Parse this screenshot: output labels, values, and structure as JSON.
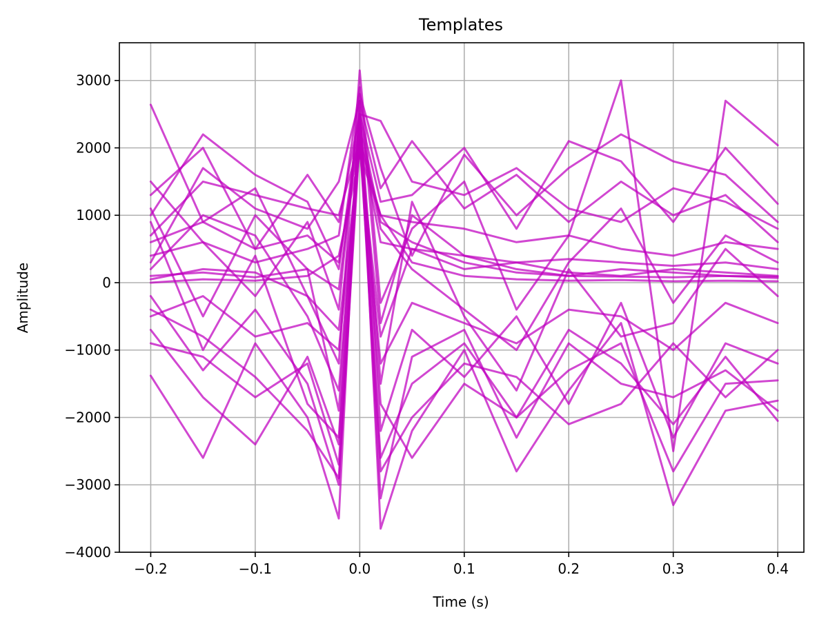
{
  "chart_data": {
    "type": "line",
    "title": "Templates",
    "xlabel": "Time (s)",
    "ylabel": "Amplitude",
    "xlim": [
      -0.23,
      0.425
    ],
    "ylim": [
      -4000,
      3560
    ],
    "x_ticks": [
      -0.2,
      -0.1,
      0.0,
      0.1,
      0.2,
      0.3,
      0.4
    ],
    "x_tick_labels": [
      "−0.2",
      "−0.1",
      "0.0",
      "0.1",
      "0.2",
      "0.3",
      "0.4"
    ],
    "y_ticks": [
      -4000,
      -3000,
      -2000,
      -1000,
      0,
      1000,
      2000,
      3000
    ],
    "y_tick_labels": [
      "−4000",
      "−3000",
      "−2000",
      "−1000",
      "0",
      "1000",
      "2000",
      "3000"
    ],
    "grid": true,
    "legend": "none",
    "line_color": "#bf00bf",
    "x": [
      -0.2,
      -0.15,
      -0.1,
      -0.05,
      -0.02,
      0.0,
      0.02,
      0.05,
      0.1,
      0.15,
      0.2,
      0.25,
      0.3,
      0.35,
      0.4
    ],
    "series": [
      {
        "values": [
          2640,
          900,
          1400,
          -200,
          -1200,
          3150,
          -300,
          800,
          1500,
          -400,
          700,
          3000,
          -2500,
          2700,
          2040
        ]
      },
      {
        "values": [
          -1380,
          -2600,
          -900,
          -2000,
          -3500,
          2700,
          -3650,
          -2200,
          -1000,
          -2800,
          -1600,
          -600,
          -3300,
          -1900,
          -1750
        ]
      },
      {
        "values": [
          400,
          600,
          300,
          500,
          700,
          2900,
          -600,
          1000,
          400,
          200,
          100,
          200,
          150,
          100,
          90
        ]
      },
      {
        "values": [
          100,
          150,
          80,
          200,
          -100,
          2400,
          900,
          600,
          300,
          150,
          100,
          90,
          80,
          100,
          70
        ]
      },
      {
        "values": [
          -400,
          -800,
          -1400,
          -2200,
          -2900,
          2100,
          -2600,
          -1500,
          -900,
          -2000,
          -700,
          -1200,
          -2100,
          -1100,
          -2050
        ]
      },
      {
        "values": [
          1300,
          2000,
          500,
          1600,
          900,
          2500,
          1200,
          1300,
          2000,
          800,
          2100,
          1800,
          900,
          2000,
          1170
        ]
      },
      {
        "values": [
          700,
          1500,
          1300,
          1100,
          1000,
          2100,
          1000,
          900,
          800,
          600,
          700,
          500,
          400,
          600,
          500
        ]
      },
      {
        "values": [
          -700,
          -1700,
          -2400,
          -1100,
          -2400,
          2200,
          -1800,
          -2600,
          -1500,
          -2000,
          -1300,
          -900,
          -2800,
          -1500,
          -1450
        ]
      },
      {
        "values": [
          200,
          1000,
          700,
          -500,
          -1600,
          2300,
          800,
          200,
          -400,
          -1000,
          300,
          1100,
          -300,
          700,
          300
        ]
      },
      {
        "values": [
          1000,
          2200,
          1600,
          1200,
          200,
          2500,
          2400,
          1500,
          1300,
          1700,
          1100,
          900,
          1400,
          1200,
          800
        ]
      },
      {
        "values": [
          -500,
          -200,
          -800,
          -600,
          -1000,
          2000,
          -1200,
          -300,
          -600,
          -900,
          -400,
          -500,
          -1000,
          -300,
          -600
        ]
      },
      {
        "values": [
          0,
          50,
          30,
          100,
          400,
          1900,
          1000,
          300,
          100,
          50,
          30,
          40,
          20,
          30,
          20
        ]
      },
      {
        "values": [
          900,
          -1000,
          400,
          -1800,
          -2300,
          2600,
          -2200,
          -700,
          -1400,
          -500,
          -1800,
          -300,
          -2300,
          -900,
          -1200
        ]
      },
      {
        "values": [
          300,
          1700,
          1100,
          800,
          1500,
          2700,
          1400,
          2100,
          1100,
          1600,
          900,
          1500,
          1000,
          1300,
          600
        ]
      },
      {
        "values": [
          -200,
          -1300,
          -400,
          -1500,
          -3000,
          2300,
          -3200,
          -1100,
          -700,
          -2300,
          -900,
          -1500,
          -1700,
          -1300,
          -1900
        ]
      },
      {
        "values": [
          1500,
          600,
          -200,
          900,
          -400,
          2800,
          1700,
          400,
          1900,
          1000,
          1700,
          2200,
          1800,
          1600,
          900
        ]
      },
      {
        "values": [
          50,
          200,
          150,
          -200,
          -700,
          2000,
          -800,
          500,
          200,
          300,
          150,
          100,
          200,
          150,
          100
        ]
      },
      {
        "values": [
          1100,
          -500,
          1000,
          200,
          -1900,
          2500,
          -1500,
          1200,
          -500,
          -1600,
          200,
          -800,
          -600,
          500,
          -200
        ]
      },
      {
        "values": [
          600,
          900,
          500,
          700,
          300,
          2200,
          600,
          500,
          400,
          300,
          350,
          300,
          250,
          300,
          200
        ]
      },
      {
        "values": [
          -900,
          -1100,
          -1700,
          -1200,
          -2700,
          2400,
          -2800,
          -2000,
          -1200,
          -1400,
          -2100,
          -1800,
          -900,
          -1700,
          -1000
        ]
      }
    ]
  }
}
